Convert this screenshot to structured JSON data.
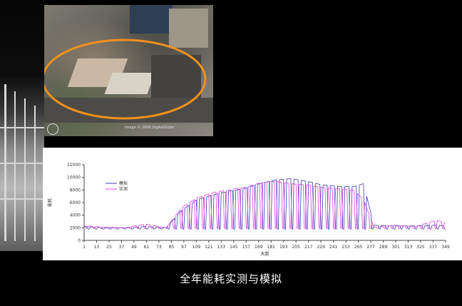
{
  "caption": "全年能耗实测与模拟",
  "aerial": {
    "credit": "Image © 2006 DigitalGlobe",
    "highlight_color": "#f0901e"
  },
  "chart_data": {
    "type": "line",
    "title": "",
    "xlabel": "天数",
    "ylabel": "能耗",
    "xlim": [
      1,
      349
    ],
    "ylim": [
      0,
      12000
    ],
    "x_ticks": [
      "1",
      "13",
      "25",
      "37",
      "49",
      "61",
      "73",
      "85",
      "97",
      "109",
      "121",
      "133",
      "145",
      "157",
      "169",
      "181",
      "193",
      "205",
      "217",
      "229",
      "241",
      "253",
      "265",
      "277",
      "289",
      "301",
      "313",
      "325",
      "337",
      "349"
    ],
    "y_ticks": [
      "0",
      "2000",
      "4000",
      "6000",
      "8000",
      "10000",
      "12000"
    ],
    "legend": {
      "placement": "top-left",
      "entries": [
        "模拟",
        "实测"
      ]
    },
    "series": [
      {
        "name": "模拟",
        "color": "#3b3bb0",
        "x": [
          1,
          20,
          40,
          60,
          80,
          95,
          110,
          125,
          140,
          155,
          170,
          185,
          200,
          215,
          230,
          245,
          260,
          270,
          280,
          300,
          320,
          340,
          349
        ],
        "y": [
          2200,
          2000,
          2000,
          2200,
          2000,
          4800,
          6500,
          7200,
          7800,
          8200,
          9000,
          9600,
          9800,
          9400,
          8800,
          8600,
          8500,
          9000,
          2400,
          2300,
          2300,
          2400,
          2300
        ]
      },
      {
        "name": "实测",
        "color": "#e040e0",
        "x": [
          1,
          20,
          40,
          60,
          80,
          95,
          110,
          125,
          140,
          155,
          170,
          185,
          200,
          215,
          230,
          245,
          260,
          270,
          280,
          300,
          320,
          340,
          349
        ],
        "y": [
          2300,
          2100,
          2000,
          2600,
          2000,
          5200,
          6800,
          7600,
          8000,
          8400,
          9100,
          9400,
          9000,
          8800,
          8400,
          8200,
          8000,
          6500,
          2100,
          2400,
          2200,
          3200,
          2800
        ]
      }
    ]
  }
}
